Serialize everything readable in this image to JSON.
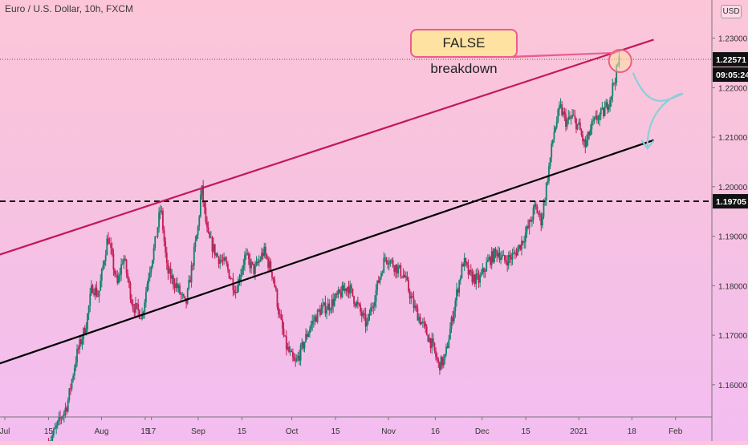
{
  "header": {
    "symbol_title": "Euro / U.S. Dollar, 10h, FXCM",
    "currency_button": "USD"
  },
  "annotation": {
    "callout_text": "FALSE breakdown"
  },
  "price_labels": {
    "last_price": "1.22571",
    "countdown": "09:05:24",
    "level_price": "1.19705"
  },
  "colors": {
    "up_candle": "#11806a",
    "down_candle": "#c21e56",
    "upper_trendline": "#c2185b",
    "lower_trendline": "#000000",
    "callout_fill": "#fde2a2",
    "callout_border": "#ef5b8a",
    "arrow": "#86d1da"
  },
  "chart_data": {
    "type": "candlestick",
    "title": "Euro / U.S. Dollar, 10h, FXCM",
    "y_axis": {
      "range": [
        1.1535,
        1.2377
      ],
      "ticks": [
        "1.16000",
        "1.17000",
        "1.18000",
        "1.19000",
        "1.20000",
        "1.21000",
        "1.22000",
        "1.23000"
      ],
      "side": "right"
    },
    "x_axis": {
      "ticks": [
        "Jul",
        "15",
        "Aug",
        "15",
        "17",
        "Sep",
        "15",
        "Oct",
        "15",
        "Nov",
        "16",
        "Dec",
        "15",
        "2021",
        "18",
        "Feb"
      ],
      "tick_day_offsets": [
        0,
        14,
        31,
        45,
        47,
        62,
        76,
        92,
        106,
        123,
        138,
        153,
        167,
        184,
        201,
        215
      ]
    },
    "price_path": {
      "description": "approximate closing-price path (day offset from Jul 1, price)",
      "points": [
        [
          14,
          1.148
        ],
        [
          20,
          1.156
        ],
        [
          23,
          1.166
        ],
        [
          26,
          1.172
        ],
        [
          28,
          1.18
        ],
        [
          30,
          1.178
        ],
        [
          33,
          1.19
        ],
        [
          36,
          1.18
        ],
        [
          38,
          1.186
        ],
        [
          41,
          1.176
        ],
        [
          44,
          1.174
        ],
        [
          46,
          1.182
        ],
        [
          48,
          1.188
        ],
        [
          50,
          1.196
        ],
        [
          52,
          1.183
        ],
        [
          55,
          1.18
        ],
        [
          58,
          1.176
        ],
        [
          60,
          1.184
        ],
        [
          62,
          1.192
        ],
        [
          63,
          1.2
        ],
        [
          65,
          1.19
        ],
        [
          68,
          1.186
        ],
        [
          71,
          1.184
        ],
        [
          74,
          1.179
        ],
        [
          77,
          1.186
        ],
        [
          80,
          1.183
        ],
        [
          83,
          1.187
        ],
        [
          86,
          1.182
        ],
        [
          88,
          1.174
        ],
        [
          90,
          1.168
        ],
        [
          93,
          1.164
        ],
        [
          95,
          1.167
        ],
        [
          98,
          1.172
        ],
        [
          101,
          1.175
        ],
        [
          104,
          1.176
        ],
        [
          107,
          1.178
        ],
        [
          110,
          1.18
        ],
        [
          113,
          1.176
        ],
        [
          116,
          1.172
        ],
        [
          119,
          1.179
        ],
        [
          122,
          1.186
        ],
        [
          125,
          1.184
        ],
        [
          128,
          1.182
        ],
        [
          131,
          1.176
        ],
        [
          134,
          1.172
        ],
        [
          137,
          1.168
        ],
        [
          139,
          1.164
        ],
        [
          141,
          1.165
        ],
        [
          143,
          1.172
        ],
        [
          145,
          1.179
        ],
        [
          147,
          1.185
        ],
        [
          149,
          1.182
        ],
        [
          152,
          1.181
        ],
        [
          155,
          1.185
        ],
        [
          158,
          1.187
        ],
        [
          160,
          1.185
        ],
        [
          163,
          1.186
        ],
        [
          165,
          1.188
        ],
        [
          168,
          1.192
        ],
        [
          170,
          1.196
        ],
        [
          172,
          1.193
        ],
        [
          174,
          1.202
        ],
        [
          176,
          1.211
        ],
        [
          178,
          1.216
        ],
        [
          180,
          1.213
        ],
        [
          182,
          1.214
        ],
        [
          184,
          1.212
        ],
        [
          186,
          1.208
        ],
        [
          188,
          1.212
        ],
        [
          190,
          1.214
        ],
        [
          192,
          1.215
        ],
        [
          194,
          1.218
        ],
        [
          196,
          1.223
        ],
        [
          197,
          1.2257
        ]
      ]
    },
    "trendlines": [
      {
        "name": "upper",
        "from": [
          -3,
          1.186
        ],
        "to": [
          208,
          1.2297
        ]
      },
      {
        "name": "lower",
        "from": [
          -3,
          1.164
        ],
        "to": [
          208,
          1.2094
        ]
      }
    ],
    "horizontal_lines": [
      {
        "price": 1.19705,
        "style": "dashed"
      },
      {
        "price": 1.22571,
        "style": "dotted"
      }
    ],
    "annotations": [
      "FALSE breakdown"
    ]
  }
}
